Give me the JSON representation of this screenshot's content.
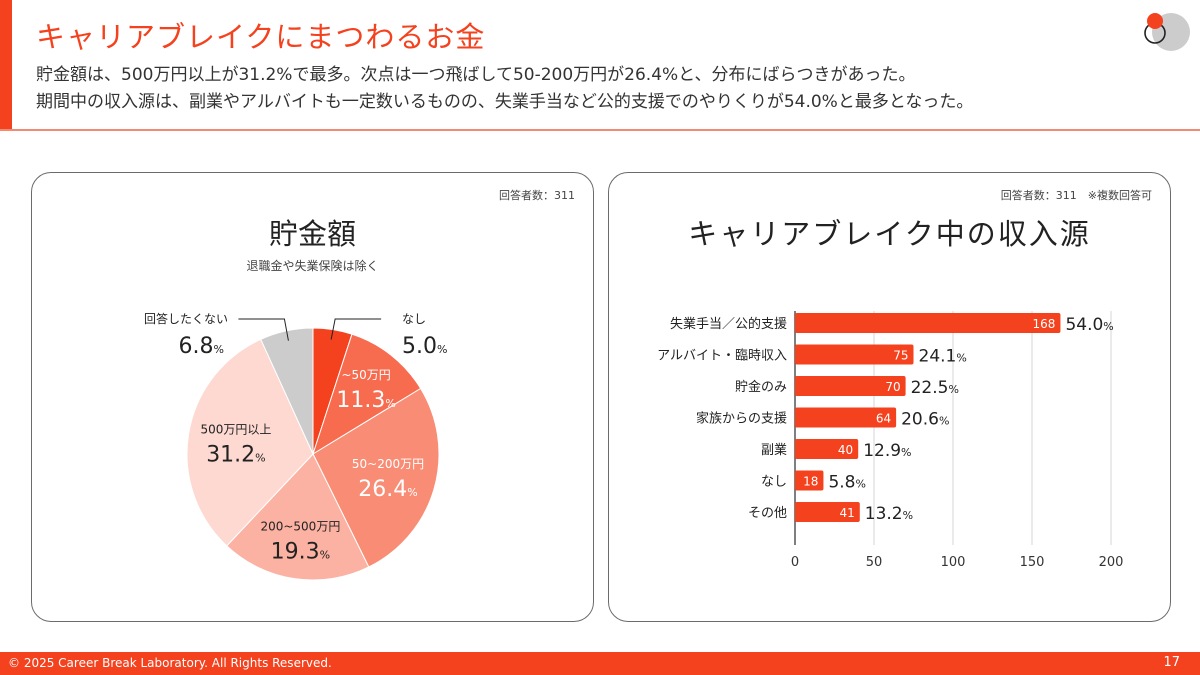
{
  "header": {
    "title": "キャリアブレイクにまつわるお金",
    "summary_lines": [
      "貯金額は、500万円以上が31.2%で最多。次点は一つ飛ばして50-200万円が26.4%と、分布にばらつきがあった。",
      "期間中の収入源は、副業やアルバイトも一定数いるものの、失業手当など公的支援でのやりくりが54.0%と最多となった。"
    ],
    "logo": "career-break-logo-icon"
  },
  "colors": {
    "accent": "#f4411e",
    "pie": [
      "#f4411e",
      "#f76b4f",
      "#f98c74",
      "#fbb2a2",
      "#fdd9d1",
      "#cccccc"
    ]
  },
  "left_card": {
    "respondents": "回答者数：311",
    "title": "貯金額",
    "subtitle": "退職金や失業保険は除く"
  },
  "right_card": {
    "respondents": "回答者数：311　※複数回答可",
    "title": "キャリアブレイク中の収入源"
  },
  "chart_data": [
    {
      "type": "pie",
      "title": "貯金額",
      "subtitle": "退職金や失業保険は除く",
      "categories": [
        "なし",
        "~50万円",
        "50~200万円",
        "200~500万円",
        "500万円以上",
        "回答したくない"
      ],
      "values": [
        5.0,
        11.3,
        26.4,
        19.3,
        31.2,
        6.8
      ],
      "value_labels": [
        "5.0",
        "11.3",
        "26.4",
        "19.3",
        "31.2",
        "6.8"
      ],
      "unit": "%",
      "start": "12 o'clock, clockwise"
    },
    {
      "type": "bar",
      "orientation": "horizontal",
      "title": "キャリアブレイク中の収入源",
      "categories": [
        "失業手当／公的支援",
        "アルバイト・臨時収入",
        "貯金のみ",
        "家族からの支援",
        "副業",
        "なし",
        "その他"
      ],
      "values": [
        168,
        75,
        70,
        64,
        40,
        18,
        41
      ],
      "percent_labels": [
        "54.0",
        "24.1",
        "22.5",
        "20.6",
        "12.9",
        "5.8",
        "13.2"
      ],
      "percent_unit": "%",
      "xlim": [
        0,
        200
      ],
      "xticks": [
        "0",
        "50",
        "100",
        "150",
        "200"
      ],
      "grid": true
    }
  ],
  "footer": {
    "copyright": "© 2025 Career Break Laboratory. All Rights Reserved.",
    "page": "17"
  }
}
